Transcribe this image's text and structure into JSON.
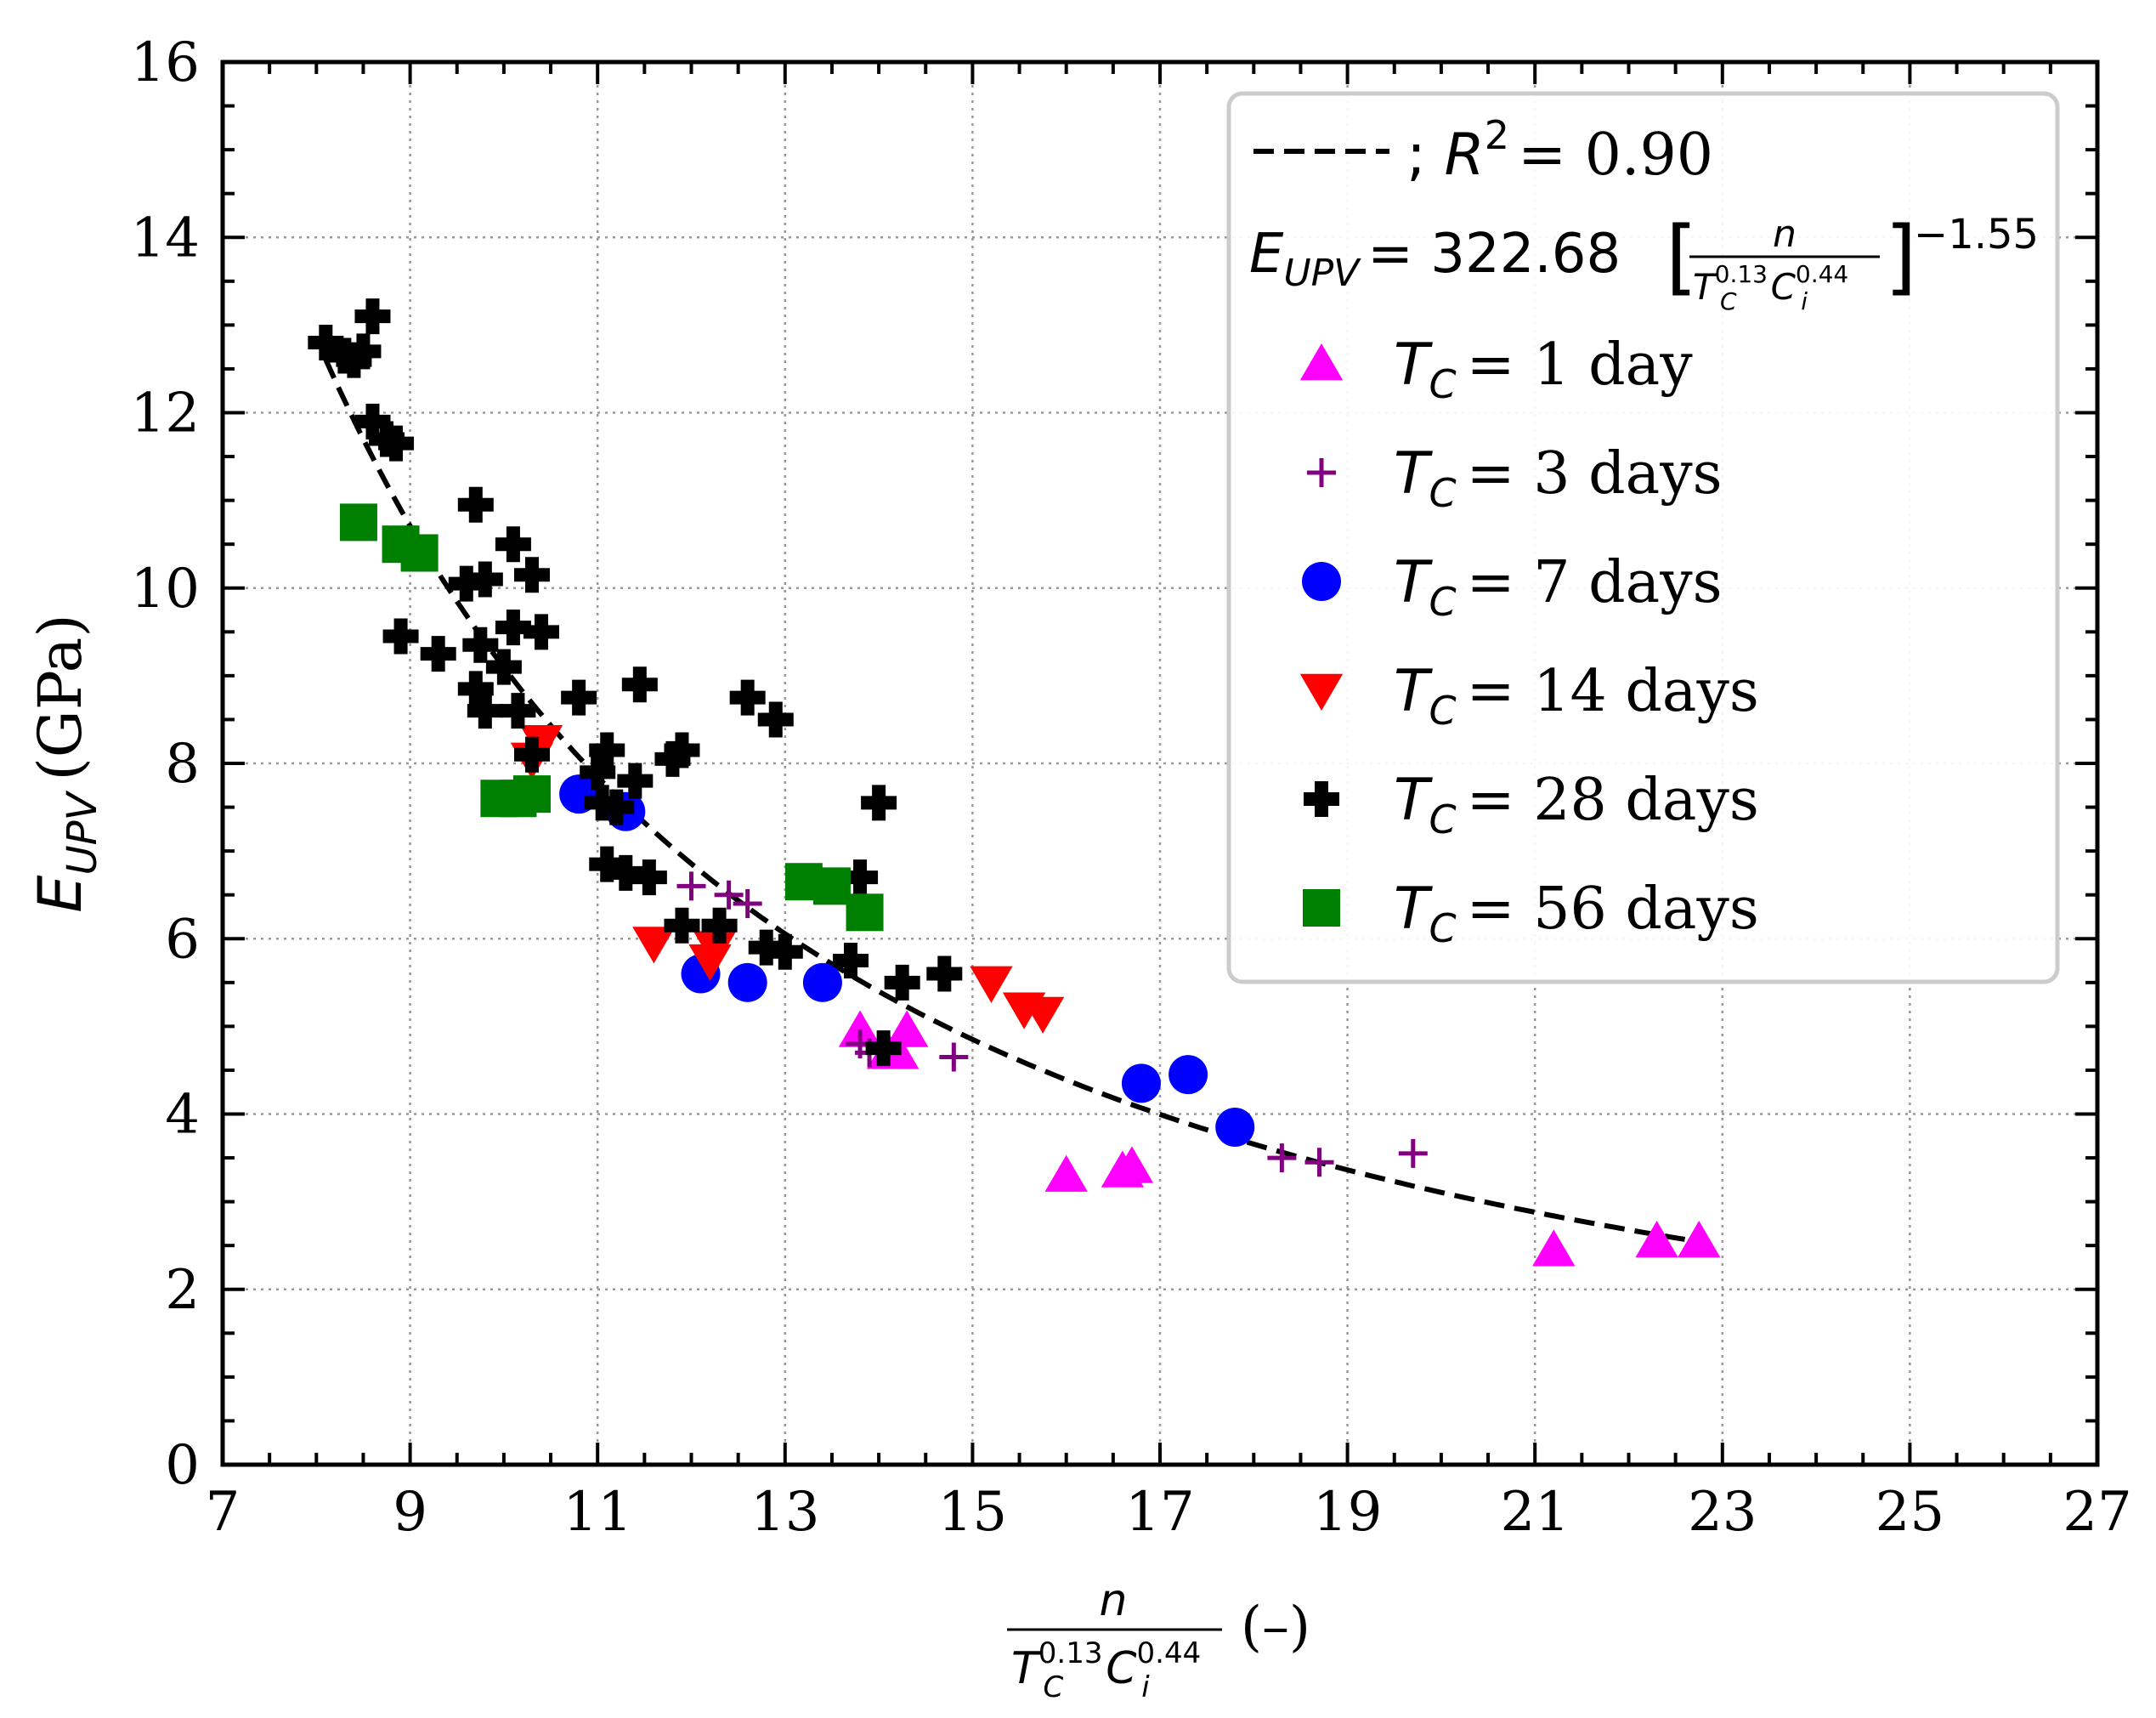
{
  "chart_data": {
    "type": "scatter",
    "title": "",
    "xlabel": "n / (T_C^0.13 C_i^0.44) (–)",
    "ylabel": "E_UPV (GPa)",
    "xlabel_parts": {
      "numerator": "n",
      "den_T": "T",
      "den_T_sub": "C",
      "den_T_sup": "0.13",
      "den_C": "C",
      "den_C_sub": "i",
      "den_C_sup": "0.44",
      "unit": "(–)"
    },
    "ylabel_parts": {
      "symbol": "E",
      "subscript": "UPV",
      "unit": "(GPa)"
    },
    "xlim": [
      7,
      27
    ],
    "ylim": [
      0,
      16
    ],
    "xticks": [
      7,
      9,
      11,
      13,
      15,
      17,
      19,
      21,
      23,
      25,
      27
    ],
    "yticks": [
      0,
      2,
      4,
      6,
      8,
      10,
      12,
      14,
      16
    ],
    "grid": true,
    "legend_position": "top-right",
    "fit": {
      "name": "; R² = 0.90",
      "label_r": "R",
      "label_r_sup": "2",
      "label_value": "= 0.90",
      "equation": "E_UPV = 322.68[n/(T_C^0.13 C_i^0.44)]^-1.55",
      "eq_lhs": "E",
      "eq_lhs_sub": "UPV",
      "eq_coef": "= 322.68",
      "eq_exp": "−1.55",
      "a": 322.68,
      "b": -1.55,
      "x_range": [
        8.1,
        22.8
      ],
      "color": "#000000"
    },
    "series": [
      {
        "name": "T_C = 1 day",
        "label_prefix": "T",
        "label_sub": "C",
        "label_suffix": "= 1 day",
        "marker": "triangle-up",
        "color": "#ff00ff",
        "points": [
          [
            13.8,
            4.95
          ],
          [
            14.1,
            4.7
          ],
          [
            14.3,
            4.95
          ],
          [
            14.2,
            4.7
          ],
          [
            16.0,
            3.3
          ],
          [
            16.6,
            3.35
          ],
          [
            16.7,
            3.4
          ],
          [
            21.2,
            2.45
          ],
          [
            22.3,
            2.55
          ],
          [
            22.75,
            2.55
          ]
        ]
      },
      {
        "name": "T_C = 3 days",
        "label_prefix": "T",
        "label_sub": "C",
        "label_suffix": "= 3 days",
        "marker": "plus",
        "color": "#800080",
        "points": [
          [
            12.0,
            6.6
          ],
          [
            12.4,
            6.5
          ],
          [
            12.6,
            6.4
          ],
          [
            13.8,
            4.8
          ],
          [
            13.9,
            4.7
          ],
          [
            14.8,
            4.65
          ],
          [
            18.3,
            3.5
          ],
          [
            18.7,
            3.45
          ],
          [
            19.7,
            3.55
          ]
        ]
      },
      {
        "name": "T_C = 7 days",
        "label_prefix": "T",
        "label_sub": "C",
        "label_suffix": "= 7 days",
        "marker": "circle",
        "color": "#0000ff",
        "points": [
          [
            10.8,
            7.65
          ],
          [
            11.3,
            7.45
          ],
          [
            12.1,
            5.6
          ],
          [
            12.6,
            5.5
          ],
          [
            13.4,
            5.5
          ],
          [
            16.8,
            4.35
          ],
          [
            17.3,
            4.45
          ],
          [
            17.8,
            3.85
          ]
        ]
      },
      {
        "name": "T_C = 14 days",
        "label_prefix": "T",
        "label_sub": "C",
        "label_suffix": "= 14 days",
        "marker": "triangle-down",
        "color": "#ff0000",
        "points": [
          [
            10.3,
            8.05
          ],
          [
            10.4,
            8.25
          ],
          [
            11.6,
            5.95
          ],
          [
            12.2,
            5.75
          ],
          [
            12.25,
            5.9
          ],
          [
            15.2,
            5.5
          ],
          [
            15.55,
            5.2
          ],
          [
            15.75,
            5.15
          ]
        ]
      },
      {
        "name": "T_C = 28 days",
        "label_prefix": "T",
        "label_sub": "C",
        "label_suffix": "= 28 days",
        "marker": "thick-plus",
        "color": "#000000",
        "points": [
          [
            8.1,
            12.8
          ],
          [
            8.3,
            12.65
          ],
          [
            8.4,
            12.6
          ],
          [
            8.5,
            12.7
          ],
          [
            8.6,
            13.1
          ],
          [
            8.6,
            11.9
          ],
          [
            8.75,
            11.7
          ],
          [
            8.85,
            11.65
          ],
          [
            8.9,
            9.45
          ],
          [
            9.3,
            9.25
          ],
          [
            9.6,
            10.05
          ],
          [
            9.7,
            10.95
          ],
          [
            9.8,
            10.1
          ],
          [
            10.1,
            10.5
          ],
          [
            10.3,
            10.15
          ],
          [
            9.75,
            9.35
          ],
          [
            10.0,
            9.1
          ],
          [
            10.1,
            9.55
          ],
          [
            10.4,
            9.5
          ],
          [
            9.7,
            8.85
          ],
          [
            9.8,
            8.6
          ],
          [
            10.15,
            8.6
          ],
          [
            10.3,
            8.1
          ],
          [
            10.8,
            8.75
          ],
          [
            11.0,
            7.9
          ],
          [
            11.1,
            8.15
          ],
          [
            11.05,
            7.55
          ],
          [
            11.2,
            7.5
          ],
          [
            11.4,
            7.8
          ],
          [
            11.45,
            8.9
          ],
          [
            11.8,
            8.05
          ],
          [
            11.9,
            8.15
          ],
          [
            11.1,
            6.85
          ],
          [
            11.3,
            6.75
          ],
          [
            11.55,
            6.7
          ],
          [
            11.9,
            6.15
          ],
          [
            12.3,
            6.15
          ],
          [
            12.8,
            5.9
          ],
          [
            13.0,
            5.85
          ],
          [
            13.7,
            5.75
          ],
          [
            12.6,
            8.75
          ],
          [
            12.9,
            8.5
          ],
          [
            13.8,
            6.7
          ],
          [
            14.0,
            7.55
          ],
          [
            14.05,
            4.75
          ],
          [
            14.25,
            5.5
          ],
          [
            14.7,
            5.6
          ]
        ]
      },
      {
        "name": "T_C = 56 days",
        "label_prefix": "T",
        "label_sub": "C",
        "label_suffix": "= 56 days",
        "marker": "square",
        "color": "#008000",
        "points": [
          [
            8.45,
            10.75
          ],
          [
            8.9,
            10.5
          ],
          [
            9.1,
            10.4
          ],
          [
            9.95,
            7.6
          ],
          [
            10.15,
            7.6
          ],
          [
            10.3,
            7.65
          ],
          [
            13.2,
            6.65
          ],
          [
            13.5,
            6.6
          ],
          [
            13.85,
            6.3
          ]
        ]
      }
    ]
  }
}
